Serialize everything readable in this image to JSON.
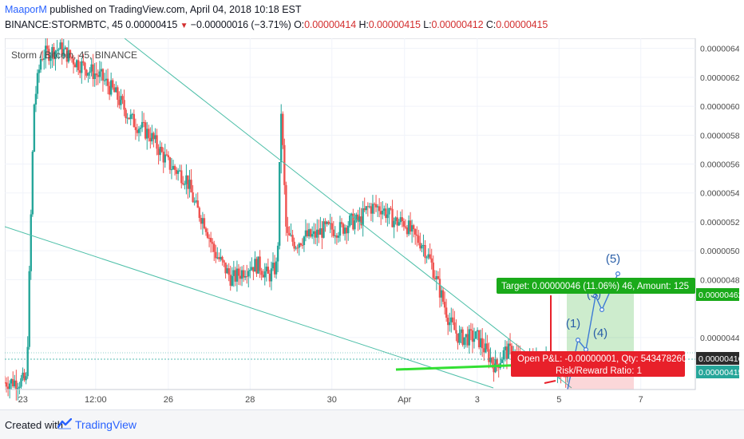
{
  "header": {
    "author": "MaaporM",
    "published_text": " published on TradingView.com, April 04, 2018 10:18 EST",
    "symbol": "BINANCE:STORMBTC, 45",
    "last": "0.00000415",
    "change": "−0.00000016 (−3.71%)",
    "o_label": "O:",
    "o_value": "0.00000414",
    "h_label": "H:",
    "h_value": "0.00000415",
    "l_label": "L:",
    "l_value": "0.00000412",
    "c_label": "C:",
    "c_value": "0.00000415"
  },
  "footer": {
    "created_with": "Created with",
    "brand": "TradingView"
  },
  "colors": {
    "up": "#26a69a",
    "down": "#ef5350",
    "trendline": "#4dbfa8",
    "support": "#33e033",
    "target_box": "#1aaa1a",
    "stop_box": "#e8202a",
    "axis_text": "#4a4a4a"
  },
  "chart_data": {
    "type": "candlestick",
    "title": "Storm / Bitcoin, 45, BINANCE",
    "x_ticks": [
      "23",
      "12:00",
      "26",
      "28",
      "30",
      "Apr",
      "3",
      "5",
      "7"
    ],
    "y_ticks": [
      6.4e-06,
      6.2e-06,
      6e-06,
      5.8e-06,
      5.6e-06,
      5.4e-06,
      5.2e-06,
      5e-06,
      4.8e-06,
      4.4e-06
    ],
    "y_tick_labels": [
      "0.00000640",
      "0.00000620",
      "0.00000600",
      "0.00000580",
      "0.00000560",
      "0.00000540",
      "0.00000520",
      "0.00000500",
      "0.00000480",
      "0.00000440"
    ],
    "ylim": [
      4.04e-06,
      6.47e-06
    ],
    "price_path": [
      [
        0.0,
        4.09e-06
      ],
      [
        1.2,
        4.1e-06
      ],
      [
        1.6,
        6e-06
      ],
      [
        2.0,
        6.35e-06
      ],
      [
        3.0,
        6.4e-06
      ],
      [
        4.0,
        6.3e-06
      ],
      [
        5.3,
        6.2e-06
      ],
      [
        6.0,
        6.1e-06
      ],
      [
        7.0,
        5.9e-06
      ],
      [
        8.0,
        5.8e-06
      ],
      [
        9.0,
        5.6e-06
      ],
      [
        10.0,
        5.5e-06
      ],
      [
        10.5,
        5.3e-06
      ],
      [
        11.0,
        5.2e-06
      ],
      [
        11.5,
        5e-06
      ],
      [
        12.0,
        4.9e-06
      ],
      [
        12.5,
        4.8e-06
      ],
      [
        13.0,
        4.85e-06
      ],
      [
        13.5,
        4.9e-06
      ],
      [
        14.0,
        4.9e-06
      ],
      [
        14.5,
        4.82e-06
      ],
      [
        15.0,
        4.9e-06
      ],
      [
        15.2,
        6e-06
      ],
      [
        15.5,
        5.1e-06
      ],
      [
        16.0,
        5.05e-06
      ],
      [
        16.5,
        5.1e-06
      ],
      [
        17.0,
        5.1e-06
      ],
      [
        17.6,
        5.15e-06
      ],
      [
        18.5,
        5.15e-06
      ],
      [
        19.0,
        5.2e-06
      ],
      [
        19.5,
        5.2e-06
      ],
      [
        20.0,
        5.3e-06
      ],
      [
        20.7,
        5.3e-06
      ],
      [
        21.5,
        5.2e-06
      ],
      [
        22.0,
        5.2e-06
      ],
      [
        22.5,
        5.1e-06
      ],
      [
        23.0,
        5.05e-06
      ],
      [
        23.5,
        4.9e-06
      ],
      [
        24.0,
        4.7e-06
      ],
      [
        24.5,
        4.5e-06
      ],
      [
        25.0,
        4.4e-06
      ],
      [
        25.5,
        4.4e-06
      ],
      [
        26.0,
        4.4e-06
      ],
      [
        26.5,
        4.3e-06
      ],
      [
        27.0,
        4.2e-06
      ],
      [
        27.5,
        4.3e-06
      ],
      [
        28.0,
        4.3e-06
      ],
      [
        28.5,
        4.2e-06
      ],
      [
        29.0,
        4.25e-06
      ],
      [
        29.5,
        4.25e-06
      ],
      [
        30.0,
        4.2e-06
      ],
      [
        30.5,
        4.2e-06
      ],
      [
        31.0,
        4.15e-06
      ]
    ],
    "x_range": [
      0,
      38
    ],
    "annotations": {
      "target_label": "Target: 0.00000046 (11.06%) 46, Amount: 125",
      "target_price": "0.00000462",
      "stop_line1": "Open P&L: -0.00000001, Qty: 543478260",
      "stop_line2": "Risk/Reward Ratio: 1",
      "current_price_1": "0.00000416",
      "current_price_2": "0.00000415",
      "elliott_waves": [
        "(1)",
        "(3)",
        "(4)",
        "(5)"
      ]
    }
  }
}
